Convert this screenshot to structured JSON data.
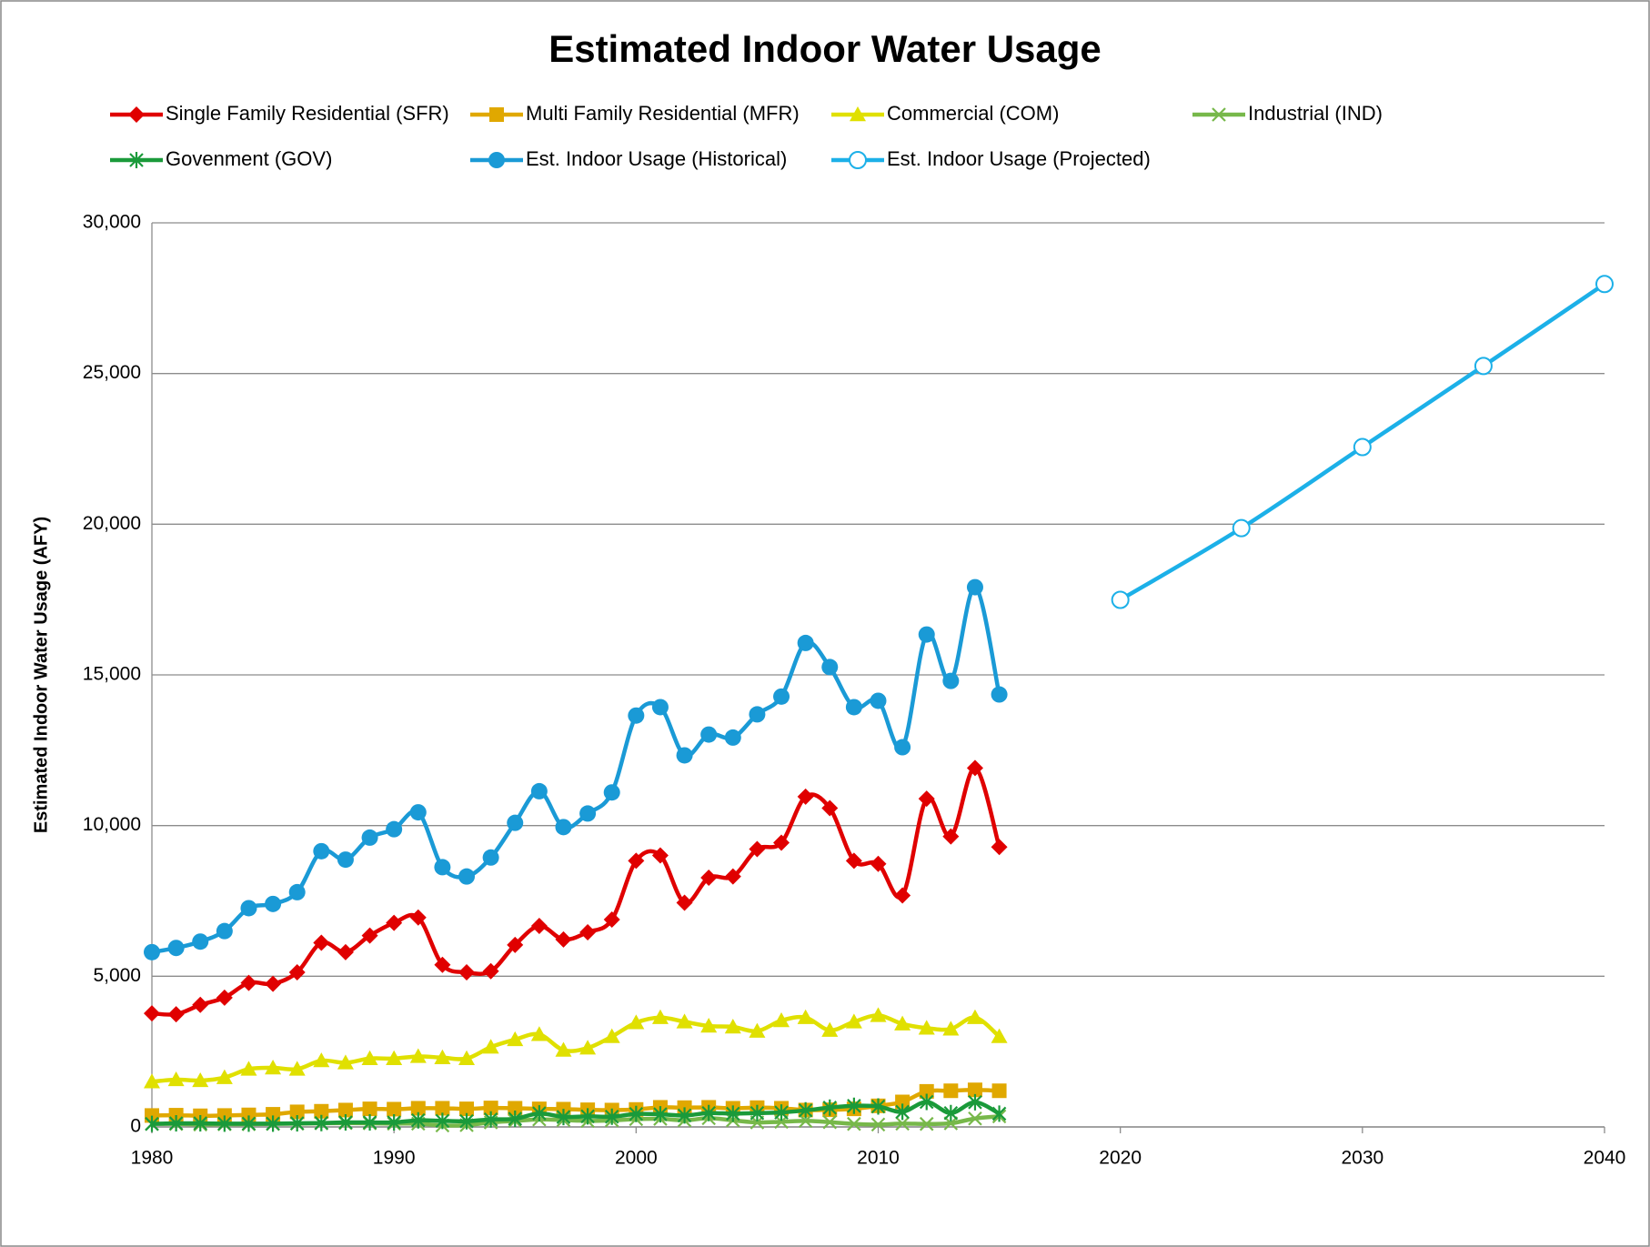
{
  "chart_data": {
    "type": "line",
    "title": "Estimated Indoor Water Usage",
    "y_label": "Estimated Indoor Water Usage (AFY)",
    "x": [
      1980,
      1981,
      1982,
      1983,
      1984,
      1985,
      1986,
      1987,
      1988,
      1989,
      1990,
      1991,
      1992,
      1993,
      1994,
      1995,
      1996,
      1997,
      1998,
      1999,
      2000,
      2001,
      2002,
      2003,
      2004,
      2005,
      2006,
      2007,
      2008,
      2009,
      2010,
      2011,
      2012,
      2013,
      2014,
      2015
    ],
    "xlim": [
      1980,
      2040
    ],
    "xticks": [
      1980,
      1990,
      2000,
      2010,
      2020,
      2030,
      2040
    ],
    "ylim": [
      0,
      30000
    ],
    "yticks": [
      0,
      {
        "value": 5000,
        "label": "5,000"
      },
      {
        "value": 10000,
        "label": "10,000"
      },
      {
        "value": 15000,
        "label": "15,000"
      },
      {
        "value": 20000,
        "label": "20,000"
      },
      {
        "value": 25000,
        "label": "25,000"
      },
      {
        "value": 30000,
        "label": "30,000"
      }
    ],
    "grid": true,
    "legend": "top",
    "series": [
      {
        "name": "Single Family Residential (SFR)",
        "color": "#e00000",
        "marker": "diamond",
        "values": [
          3770,
          3740,
          4050,
          4290,
          4780,
          4750,
          5130,
          6110,
          5800,
          6350,
          6770,
          6950,
          5380,
          5130,
          5170,
          6040,
          6670,
          6220,
          6460,
          6880,
          8830,
          9010,
          7440,
          8270,
          8310,
          9220,
          9430,
          10960,
          10580,
          8830,
          8730,
          7680,
          10890,
          9640,
          11910,
          9290
        ]
      },
      {
        "name": "Multi Family Residential (MFR)",
        "color": "#e0a800",
        "marker": "square",
        "values": [
          380,
          390,
          370,
          380,
          400,
          420,
          500,
          520,
          560,
          600,
          590,
          620,
          620,
          600,
          630,
          620,
          600,
          590,
          570,
          560,
          580,
          650,
          640,
          650,
          620,
          640,
          620,
          560,
          570,
          600,
          700,
          830,
          1180,
          1200,
          1230,
          1200
        ]
      },
      {
        "name": "Commercial (COM)",
        "color": "#e0e000",
        "marker": "triangle",
        "values": [
          1500,
          1570,
          1540,
          1640,
          1920,
          1960,
          1920,
          2200,
          2130,
          2270,
          2270,
          2340,
          2300,
          2270,
          2650,
          2900,
          3070,
          2550,
          2620,
          3000,
          3460,
          3630,
          3490,
          3350,
          3320,
          3180,
          3530,
          3630,
          3210,
          3490,
          3700,
          3420,
          3280,
          3250,
          3630,
          3000
        ]
      },
      {
        "name": "Industrial (IND)",
        "color": "#77b84a",
        "marker": "x",
        "values": [
          100,
          100,
          80,
          90,
          90,
          100,
          110,
          120,
          130,
          120,
          110,
          110,
          50,
          60,
          150,
          200,
          250,
          230,
          200,
          220,
          260,
          270,
          220,
          290,
          220,
          150,
          170,
          200,
          160,
          100,
          80,
          110,
          100,
          120,
          280,
          350
        ]
      },
      {
        "name": "Govenment (GOV)",
        "color": "#1a9a3a",
        "marker": "star",
        "values": [
          100,
          120,
          120,
          110,
          110,
          110,
          120,
          130,
          150,
          150,
          150,
          220,
          200,
          190,
          250,
          270,
          450,
          330,
          350,
          340,
          430,
          420,
          380,
          460,
          440,
          460,
          480,
          550,
          640,
          700,
          680,
          500,
          830,
          460,
          820,
          440
        ]
      },
      {
        "name": "Est. Indoor Usage (Historical)",
        "color": "#1a9ad6",
        "marker": "circle",
        "values": [
          5800,
          5940,
          6150,
          6500,
          7260,
          7400,
          7790,
          9150,
          8870,
          9600,
          9880,
          10440,
          8620,
          8310,
          8940,
          10090,
          11140,
          9950,
          10400,
          11100,
          13650,
          13930,
          12330,
          13020,
          12920,
          13690,
          14280,
          16060,
          15260,
          13930,
          14140,
          12600,
          16340,
          14800,
          17910,
          14350
        ]
      },
      {
        "name": "Est. Indoor Usage (Projected)",
        "color": "#1cb0e8",
        "marker": "open-circle",
        "x": [
          2020,
          2025,
          2030,
          2035,
          2040
        ],
        "values": [
          17490,
          19870,
          22560,
          25250,
          27970
        ]
      }
    ]
  }
}
